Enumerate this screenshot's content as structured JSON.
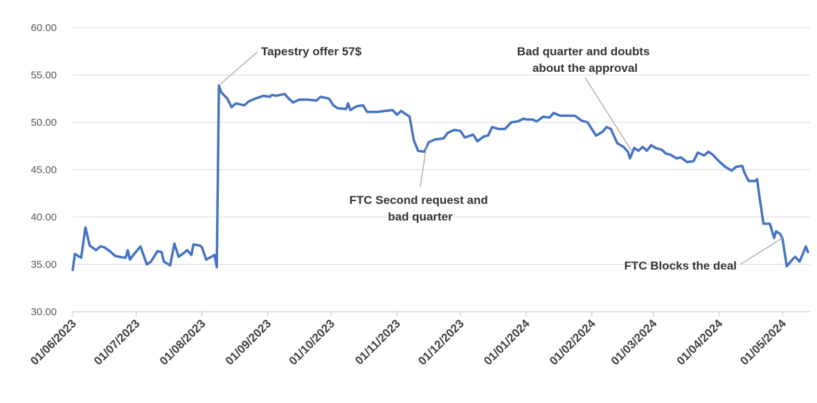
{
  "chart_data": {
    "type": "line",
    "title": "",
    "xlabel": "",
    "ylabel": "",
    "ylim": [
      30,
      60
    ],
    "yticks": [
      "30.00",
      "35.00",
      "40.00",
      "45.00",
      "50.00",
      "55.00",
      "60.00"
    ],
    "xticks": [
      {
        "date": "2023-06-01",
        "label": "01/06/2023"
      },
      {
        "date": "2023-07-01",
        "label": "01/07/2023"
      },
      {
        "date": "2023-08-01",
        "label": "01/08/2023"
      },
      {
        "date": "2023-09-01",
        "label": "01/09/2023"
      },
      {
        "date": "2023-10-01",
        "label": "01/10/2023"
      },
      {
        "date": "2023-11-01",
        "label": "01/11/2023"
      },
      {
        "date": "2023-12-01",
        "label": "01/12/2023"
      },
      {
        "date": "2024-01-01",
        "label": "01/01/2024"
      },
      {
        "date": "2024-02-01",
        "label": "01/02/2024"
      },
      {
        "date": "2024-03-01",
        "label": "01/03/2024"
      },
      {
        "date": "2024-04-01",
        "label": "01/04/2024"
      },
      {
        "date": "2024-05-01",
        "label": "01/05/2024"
      }
    ],
    "xlim": [
      "2023-06-01",
      "2024-05-14"
    ],
    "grid": true,
    "colors": {
      "line": "#4472C4",
      "grid": "#d9d9d9",
      "leader": "#a6a6a6"
    },
    "series": [
      {
        "points": [
          [
            "2023-06-01",
            34.4
          ],
          [
            "2023-06-02",
            36.1
          ],
          [
            "2023-06-05",
            35.7
          ],
          [
            "2023-06-07",
            38.9
          ],
          [
            "2023-06-09",
            37.0
          ],
          [
            "2023-06-12",
            36.5
          ],
          [
            "2023-06-14",
            36.9
          ],
          [
            "2023-06-16",
            36.8
          ],
          [
            "2023-06-19",
            36.3
          ],
          [
            "2023-06-21",
            35.9
          ],
          [
            "2023-06-23",
            35.8
          ],
          [
            "2023-06-26",
            35.7
          ],
          [
            "2023-06-27",
            36.5
          ],
          [
            "2023-06-28",
            35.5
          ],
          [
            "2023-06-30",
            36.1
          ],
          [
            "2023-07-03",
            36.9
          ],
          [
            "2023-07-06",
            35.0
          ],
          [
            "2023-07-08",
            35.3
          ],
          [
            "2023-07-11",
            36.4
          ],
          [
            "2023-07-13",
            36.3
          ],
          [
            "2023-07-14",
            35.3
          ],
          [
            "2023-07-17",
            34.9
          ],
          [
            "2023-07-19",
            37.2
          ],
          [
            "2023-07-21",
            35.8
          ],
          [
            "2023-07-24",
            36.3
          ],
          [
            "2023-07-25",
            36.5
          ],
          [
            "2023-07-27",
            36.0
          ],
          [
            "2023-07-28",
            37.1
          ],
          [
            "2023-07-31",
            37.0
          ],
          [
            "2023-08-01",
            36.8
          ],
          [
            "2023-08-03",
            35.5
          ],
          [
            "2023-08-07",
            36.0
          ],
          [
            "2023-08-08",
            34.7
          ],
          [
            "2023-08-09",
            53.9
          ],
          [
            "2023-08-10",
            53.2
          ],
          [
            "2023-08-13",
            52.5
          ],
          [
            "2023-08-15",
            51.6
          ],
          [
            "2023-08-17",
            52.0
          ],
          [
            "2023-08-21",
            51.8
          ],
          [
            "2023-08-23",
            52.2
          ],
          [
            "2023-08-26",
            52.5
          ],
          [
            "2023-08-30",
            52.8
          ],
          [
            "2023-09-02",
            52.7
          ],
          [
            "2023-09-03",
            52.9
          ],
          [
            "2023-09-05",
            52.8
          ],
          [
            "2023-09-09",
            53.0
          ],
          [
            "2023-09-11",
            52.5
          ],
          [
            "2023-09-13",
            52.1
          ],
          [
            "2023-09-16",
            52.4
          ],
          [
            "2023-09-20",
            52.4
          ],
          [
            "2023-09-24",
            52.3
          ],
          [
            "2023-09-26",
            52.7
          ],
          [
            "2023-09-30",
            52.5
          ],
          [
            "2023-10-02",
            51.8
          ],
          [
            "2023-10-04",
            51.5
          ],
          [
            "2023-10-08",
            51.4
          ],
          [
            "2023-10-09",
            52.0
          ],
          [
            "2023-10-10",
            51.3
          ],
          [
            "2023-10-13",
            51.7
          ],
          [
            "2023-10-16",
            51.8
          ],
          [
            "2023-10-18",
            51.1
          ],
          [
            "2023-10-23",
            51.1
          ],
          [
            "2023-10-26",
            51.2
          ],
          [
            "2023-10-30",
            51.3
          ],
          [
            "2023-11-01",
            50.8
          ],
          [
            "2023-11-03",
            51.2
          ],
          [
            "2023-11-07",
            50.6
          ],
          [
            "2023-11-09",
            48.1
          ],
          [
            "2023-11-11",
            47.0
          ],
          [
            "2023-11-14",
            46.9
          ],
          [
            "2023-11-16",
            47.9
          ],
          [
            "2023-11-19",
            48.2
          ],
          [
            "2023-11-23",
            48.3
          ],
          [
            "2023-11-25",
            48.9
          ],
          [
            "2023-11-28",
            49.2
          ],
          [
            "2023-12-01",
            49.1
          ],
          [
            "2023-12-03",
            48.4
          ],
          [
            "2023-12-07",
            48.7
          ],
          [
            "2023-12-09",
            48.0
          ],
          [
            "2023-12-12",
            48.5
          ],
          [
            "2023-12-14",
            48.6
          ],
          [
            "2023-12-16",
            49.5
          ],
          [
            "2023-12-19",
            49.3
          ],
          [
            "2023-12-22",
            49.3
          ],
          [
            "2023-12-25",
            50.0
          ],
          [
            "2023-12-28",
            50.1
          ],
          [
            "2023-12-31",
            50.4
          ],
          [
            "2024-01-01",
            50.3
          ],
          [
            "2024-01-04",
            50.3
          ],
          [
            "2024-01-06",
            50.1
          ],
          [
            "2024-01-09",
            50.6
          ],
          [
            "2024-01-12",
            50.5
          ],
          [
            "2024-01-14",
            51.0
          ],
          [
            "2024-01-17",
            50.7
          ],
          [
            "2024-01-20",
            50.7
          ],
          [
            "2024-01-24",
            50.7
          ],
          [
            "2024-01-27",
            50.2
          ],
          [
            "2024-01-30",
            50.0
          ],
          [
            "2024-02-03",
            48.6
          ],
          [
            "2024-02-06",
            49.0
          ],
          [
            "2024-02-08",
            49.5
          ],
          [
            "2024-02-10",
            49.3
          ],
          [
            "2024-02-13",
            47.8
          ],
          [
            "2024-02-16",
            47.4
          ],
          [
            "2024-02-18",
            46.9
          ],
          [
            "2024-02-19",
            46.2
          ],
          [
            "2024-02-21",
            47.3
          ],
          [
            "2024-02-23",
            47.0
          ],
          [
            "2024-02-25",
            47.4
          ],
          [
            "2024-02-27",
            47.0
          ],
          [
            "2024-02-29",
            47.6
          ],
          [
            "2024-03-02",
            47.3
          ],
          [
            "2024-03-05",
            47.1
          ],
          [
            "2024-03-07",
            46.7
          ],
          [
            "2024-03-09",
            46.6
          ],
          [
            "2024-03-12",
            46.2
          ],
          [
            "2024-03-14",
            46.3
          ],
          [
            "2024-03-17",
            45.8
          ],
          [
            "2024-03-20",
            45.9
          ],
          [
            "2024-03-22",
            46.8
          ],
          [
            "2024-03-25",
            46.5
          ],
          [
            "2024-03-27",
            46.9
          ],
          [
            "2024-03-29",
            46.6
          ],
          [
            "2024-04-01",
            45.9
          ],
          [
            "2024-04-04",
            45.3
          ],
          [
            "2024-04-07",
            44.9
          ],
          [
            "2024-04-09",
            45.3
          ],
          [
            "2024-04-12",
            45.4
          ],
          [
            "2024-04-13",
            44.7
          ],
          [
            "2024-04-15",
            43.8
          ],
          [
            "2024-04-18",
            43.8
          ],
          [
            "2024-04-19",
            44.0
          ],
          [
            "2024-04-20",
            42.3
          ],
          [
            "2024-04-22",
            39.3
          ],
          [
            "2024-04-25",
            39.3
          ],
          [
            "2024-04-27",
            37.8
          ],
          [
            "2024-04-28",
            38.5
          ],
          [
            "2024-04-30",
            38.2
          ],
          [
            "2024-05-01",
            37.7
          ],
          [
            "2024-05-03",
            34.8
          ],
          [
            "2024-05-06",
            35.6
          ],
          [
            "2024-05-07",
            35.8
          ],
          [
            "2024-05-09",
            35.3
          ],
          [
            "2024-05-10",
            35.8
          ],
          [
            "2024-05-12",
            36.9
          ],
          [
            "2024-05-13",
            36.3
          ]
        ]
      }
    ],
    "annotations": [
      {
        "lines": [
          "Tapestry offer 57$"
        ],
        "point": [
          "2023-08-09",
          53.9
        ]
      },
      {
        "lines": [
          "Bad quarter and doubts",
          "about the approval"
        ],
        "point": [
          "2024-02-20",
          46.9
        ]
      },
      {
        "lines": [
          "FTC Second request and",
          "bad quarter"
        ],
        "point": [
          "2023-11-15",
          47.6
        ]
      },
      {
        "lines": [
          "FTC Blocks the deal"
        ],
        "point": [
          "2024-05-01",
          37.8
        ]
      }
    ]
  }
}
